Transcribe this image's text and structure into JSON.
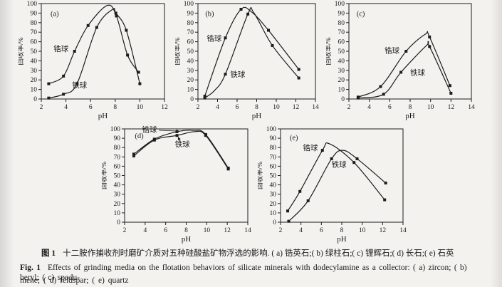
{
  "figure": {
    "fig_label_zh": "图 1",
    "caption_zh": "十二胺作捕收剂时磨矿介质对五种硅酸盐矿物浮选的影响. ( a) 锆英石;( b) 绿柱石;( c) 锂辉石;( d) 长石;( e) 石英",
    "fig_label_en": "Fig. 1",
    "caption_en_rest": "Effects of grinding media on the flotation behaviors of silicate minerals with dodecylamine as a collector: ( a) zircon; ( b) beryl; ( c) spodu-",
    "caption_en_line2": "mene; ( d) feldspar; ( e) quartz"
  },
  "colors": {
    "line": "#1c1c1c",
    "text": "#1a1a1a",
    "background": "#f3f2ef"
  },
  "chart_data": [
    {
      "id": "a",
      "type": "line",
      "panel_label": "(a)",
      "panel_label_pos": [
        2.75,
        87
      ],
      "xlabel": "pH",
      "ylabel": "回收率/%",
      "xlim": [
        2,
        12
      ],
      "xticks": [
        2,
        4,
        6,
        8,
        10,
        12
      ],
      "ylim": [
        0,
        100
      ],
      "ytick_step": 10,
      "grid": false,
      "series": [
        {
          "name": "锆球",
          "label_pos": [
            3.0,
            50
          ],
          "curve": [
            [
              2.6,
              16
            ],
            [
              3.8,
              24
            ],
            [
              4.7,
              50
            ],
            [
              5.8,
              77
            ],
            [
              7.35,
              98
            ],
            [
              8.1,
              87
            ],
            [
              9.0,
              46
            ],
            [
              9.9,
              28
            ]
          ],
          "markers": [
            [
              2.6,
              16
            ],
            [
              3.8,
              24
            ],
            [
              4.7,
              50
            ],
            [
              5.8,
              77
            ],
            [
              8.1,
              87
            ],
            [
              9.0,
              46
            ],
            [
              9.9,
              28
            ]
          ]
        },
        {
          "name": "铁球",
          "label_pos": [
            4.5,
            12
          ],
          "curve": [
            [
              2.6,
              1
            ],
            [
              3.8,
              5
            ],
            [
              4.9,
              16
            ],
            [
              6.5,
              75
            ],
            [
              7.8,
              94
            ],
            [
              8.05,
              90
            ],
            [
              8.9,
              72
            ],
            [
              10.0,
              16
            ]
          ],
          "markers": [
            [
              2.6,
              1
            ],
            [
              3.8,
              5
            ],
            [
              4.9,
              16
            ],
            [
              6.5,
              75
            ],
            [
              8.05,
              90
            ],
            [
              8.9,
              72
            ],
            [
              10.0,
              16
            ]
          ]
        }
      ],
      "annotations": []
    },
    {
      "id": "b",
      "type": "line",
      "panel_label": "(b)",
      "panel_label_pos": [
        2.75,
        87
      ],
      "xlabel": "pH",
      "ylabel": "回收率/%",
      "xlim": [
        2,
        14
      ],
      "xticks": [
        2,
        4,
        6,
        8,
        10,
        12,
        14
      ],
      "ylim": [
        0,
        100
      ],
      "ytick_step": 10,
      "grid": false,
      "series": [
        {
          "name": "锆球",
          "label_pos": [
            2.9,
            61
          ],
          "curve": [
            [
              2.7,
              3
            ],
            [
              4.8,
              64
            ],
            [
              6.4,
              94
            ],
            [
              7.5,
              91
            ],
            [
              9.2,
              72
            ],
            [
              12.3,
              31
            ]
          ],
          "markers": [
            [
              2.7,
              3
            ],
            [
              4.8,
              64
            ],
            [
              6.4,
              94
            ],
            [
              9.2,
              72
            ],
            [
              12.3,
              31
            ]
          ]
        },
        {
          "name": "铁球",
          "label_pos": [
            5.3,
            23
          ],
          "curve": [
            [
              2.7,
              1
            ],
            [
              3.7,
              9
            ],
            [
              4.8,
              26
            ],
            [
              7.1,
              89
            ],
            [
              7.7,
              90.5
            ],
            [
              9.6,
              56
            ],
            [
              12.3,
              22
            ]
          ],
          "markers": [
            [
              2.7,
              1
            ],
            [
              4.8,
              26
            ],
            [
              7.1,
              89
            ],
            [
              9.6,
              56
            ],
            [
              12.3,
              22
            ]
          ]
        }
      ],
      "annotations": []
    },
    {
      "id": "c",
      "type": "line",
      "panel_label": "(c)",
      "panel_label_pos": [
        2.75,
        87
      ],
      "xlabel": "pH",
      "ylabel": "回收率/%",
      "xlim": [
        2,
        14
      ],
      "xticks": [
        2,
        4,
        6,
        8,
        10,
        12,
        14
      ],
      "ylim": [
        0,
        100
      ],
      "ytick_step": 10,
      "grid": false,
      "series": [
        {
          "name": "锆球",
          "label_pos": [
            5.5,
            48
          ],
          "curve": [
            [
              2.9,
              2
            ],
            [
              5.1,
              13
            ],
            [
              7.6,
              50
            ],
            [
              9.5,
              68
            ],
            [
              9.9,
              65
            ],
            [
              11.9,
              14
            ]
          ],
          "markers": [
            [
              2.9,
              2
            ],
            [
              5.1,
              13
            ],
            [
              7.6,
              50
            ],
            [
              9.9,
              65
            ],
            [
              11.9,
              14
            ]
          ]
        },
        {
          "name": "铁球",
          "label_pos": [
            8.0,
            25
          ],
          "curve": [
            [
              2.9,
              1
            ],
            [
              5.4,
              5
            ],
            [
              7.1,
              28
            ],
            [
              9.6,
              56
            ],
            [
              9.9,
              55
            ],
            [
              12.0,
              6
            ]
          ],
          "markers": [
            [
              2.9,
              1
            ],
            [
              5.4,
              5
            ],
            [
              7.1,
              28
            ],
            [
              9.9,
              55
            ],
            [
              12.0,
              6
            ]
          ]
        }
      ],
      "annotations": []
    },
    {
      "id": "d",
      "type": "line",
      "panel_label": "(d)",
      "panel_label_pos": [
        3.0,
        90
      ],
      "xlabel": "pH",
      "ylabel": "回收率/%",
      "xlim": [
        2,
        14
      ],
      "xticks": [
        2,
        4,
        6,
        8,
        10,
        12,
        14
      ],
      "ylim": [
        0,
        100
      ],
      "ytick_step": 10,
      "grid": false,
      "series": [
        {
          "name": "锆球",
          "label_pos": [
            3.7,
            96.5
          ],
          "curve": [
            [
              2.9,
              73
            ],
            [
              4.9,
              89
            ],
            [
              7.1,
              97
            ],
            [
              8.7,
              98.5
            ],
            [
              9.9,
              94
            ],
            [
              12.1,
              58
            ]
          ],
          "markers": [
            [
              2.9,
              73
            ],
            [
              4.9,
              89
            ],
            [
              7.1,
              97
            ],
            [
              9.9,
              94
            ],
            [
              12.1,
              58
            ]
          ]
        },
        {
          "name": "铁球",
          "label_pos": [
            6.9,
            81
          ],
          "curve": [
            [
              2.9,
              71
            ],
            [
              4.9,
              88
            ],
            [
              7.1,
              93
            ],
            [
              8.8,
              97
            ],
            [
              9.9,
              93
            ],
            [
              12.1,
              57
            ]
          ],
          "markers": [
            [
              2.9,
              71
            ],
            [
              4.9,
              88
            ],
            [
              7.1,
              93
            ],
            [
              9.9,
              93
            ],
            [
              12.1,
              57
            ]
          ]
        }
      ],
      "annotations": [
        {
          "from": [
            5.35,
            98.5
          ],
          "to": [
            7.35,
            97.6
          ]
        },
        {
          "from": [
            7.5,
            84.5
          ],
          "to": [
            7.2,
            91.5
          ]
        }
      ]
    },
    {
      "id": "e",
      "type": "line",
      "panel_label": "(e)",
      "panel_label_pos": [
        2.9,
        88
      ],
      "xlabel": "pH",
      "ylabel": "回收率/%",
      "xlim": [
        2,
        14
      ],
      "xticks": [
        2,
        4,
        6,
        8,
        10,
        12,
        14
      ],
      "ylim": [
        0,
        100
      ],
      "ytick_step": 10,
      "grid": false,
      "series": [
        {
          "name": "锆球",
          "label_pos": [
            4.2,
            77
          ],
          "curve": [
            [
              2.7,
              12
            ],
            [
              3.9,
              33
            ],
            [
              6.1,
              77
            ],
            [
              6.8,
              84
            ],
            [
              9.2,
              64
            ],
            [
              12.2,
              24
            ]
          ],
          "markers": [
            [
              2.7,
              12
            ],
            [
              3.9,
              33
            ],
            [
              6.1,
              77
            ],
            [
              9.2,
              64
            ],
            [
              12.2,
              24
            ]
          ]
        },
        {
          "name": "铁球",
          "label_pos": [
            7.0,
            59
          ],
          "curve": [
            [
              2.8,
              1
            ],
            [
              4.7,
              23
            ],
            [
              7.0,
              68
            ],
            [
              8.1,
              77
            ],
            [
              9.5,
              68
            ],
            [
              12.3,
              42
            ]
          ],
          "markers": [
            [
              2.8,
              1
            ],
            [
              4.7,
              23
            ],
            [
              7.0,
              68
            ],
            [
              9.5,
              68
            ],
            [
              12.3,
              42
            ]
          ]
        }
      ],
      "annotations": []
    }
  ]
}
